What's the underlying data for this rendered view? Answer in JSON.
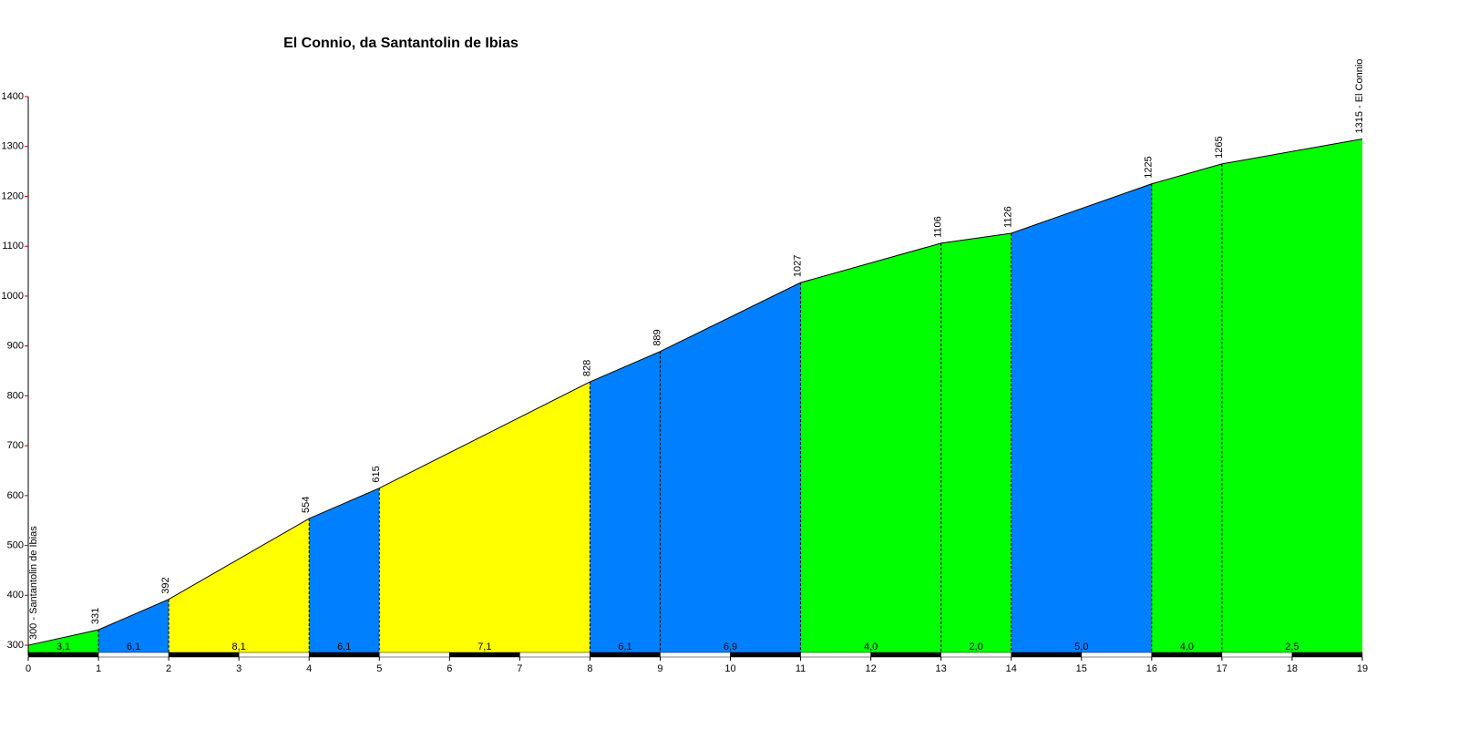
{
  "chart_data": {
    "type": "profile",
    "title": "El Connio, da Santantolin de Ibias",
    "x": [
      0,
      1,
      2,
      4,
      5,
      8,
      9,
      11,
      13,
      14,
      16,
      17,
      19
    ],
    "values": [
      300,
      331,
      392,
      554,
      615,
      828,
      889,
      1027,
      1106,
      1126,
      1225,
      1265,
      1315
    ],
    "value_labels": [
      "300 - Santantolin de Ibias",
      "331",
      "392",
      "554",
      "615",
      "828",
      "889",
      "1027",
      "1106",
      "1126",
      "1225",
      "1265",
      "1315 - El Connio"
    ],
    "segment_labels": [
      "3,1",
      "6,1",
      "8,1",
      "6,1",
      "7,1",
      "6,1",
      "6,9",
      "4,0",
      "2,0",
      "5,0",
      "4,0",
      "2,5"
    ],
    "segment_colors": [
      "#00ff00",
      "#0080ff",
      "#ffff00",
      "#0080ff",
      "#ffff00",
      "#0080ff",
      "#0080ff",
      "#00ff00",
      "#00ff00",
      "#0080ff",
      "#00ff00",
      "#00ff00"
    ],
    "xlim": [
      0,
      19
    ],
    "xticks": [
      0,
      1,
      2,
      3,
      4,
      5,
      6,
      7,
      8,
      9,
      10,
      11,
      12,
      13,
      14,
      15,
      16,
      17,
      18,
      19
    ],
    "ylim": [
      280,
      1400
    ],
    "yticks": [
      300,
      400,
      500,
      600,
      700,
      800,
      900,
      1000,
      1100,
      1200,
      1300,
      1400
    ]
  }
}
